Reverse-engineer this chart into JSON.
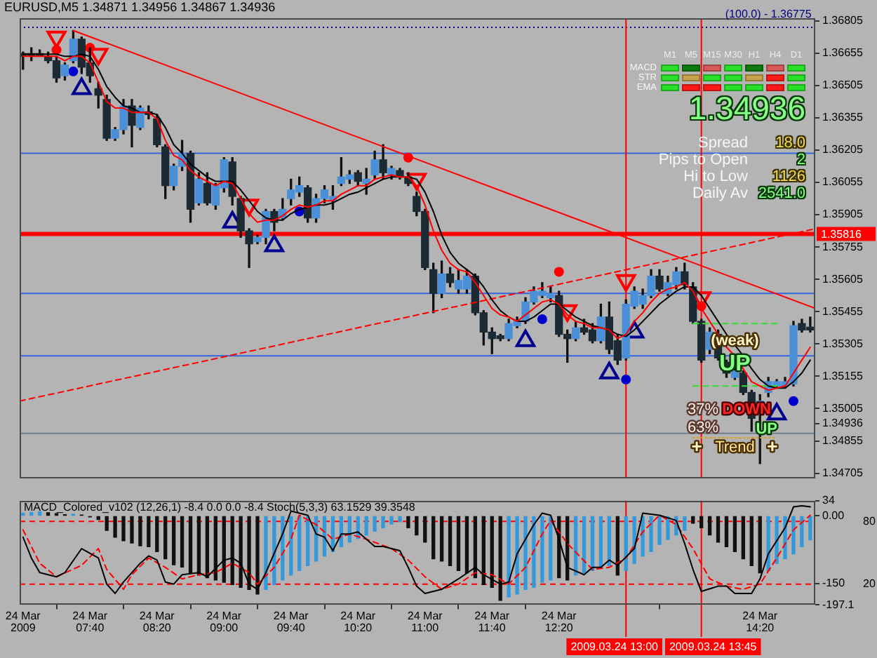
{
  "chart_data": [
    {
      "type": "candlestick",
      "title": "EURUSD,M5 1.34871 1.34956 1.34867 1.34936",
      "x": [
        "2009-03-24T07:00",
        "2009-03-24T07:05",
        "2009-03-24T07:10",
        "2009-03-24T07:15",
        "2009-03-24T07:20",
        "2009-03-24T07:25",
        "2009-03-24T07:30",
        "2009-03-24T07:35",
        "2009-03-24T07:40",
        "2009-03-24T07:45",
        "2009-03-24T07:50",
        "2009-03-24T07:55",
        "2009-03-24T08:00",
        "2009-03-24T08:05",
        "2009-03-24T08:10",
        "2009-03-24T08:15",
        "2009-03-24T08:20",
        "2009-03-24T08:25",
        "2009-03-24T08:30",
        "2009-03-24T08:35",
        "2009-03-24T08:40",
        "2009-03-24T08:45",
        "2009-03-24T08:50",
        "2009-03-24T08:55",
        "2009-03-24T09:00",
        "2009-03-24T09:05",
        "2009-03-24T09:10",
        "2009-03-24T09:15",
        "2009-03-24T09:20",
        "2009-03-24T09:25",
        "2009-03-24T09:30",
        "2009-03-24T09:35",
        "2009-03-24T09:40",
        "2009-03-24T09:45",
        "2009-03-24T09:50",
        "2009-03-24T09:55",
        "2009-03-24T10:00",
        "2009-03-24T10:05",
        "2009-03-24T10:10",
        "2009-03-24T10:15",
        "2009-03-24T10:20",
        "2009-03-24T10:25",
        "2009-03-24T10:30",
        "2009-03-24T10:35",
        "2009-03-24T10:40",
        "2009-03-24T10:45",
        "2009-03-24T10:50",
        "2009-03-24T10:55",
        "2009-03-24T11:00",
        "2009-03-24T11:05",
        "2009-03-24T11:10",
        "2009-03-24T11:15",
        "2009-03-24T11:20",
        "2009-03-24T11:25",
        "2009-03-24T11:30",
        "2009-03-24T11:35",
        "2009-03-24T11:40",
        "2009-03-24T11:45",
        "2009-03-24T11:50",
        "2009-03-24T11:55",
        "2009-03-24T12:00",
        "2009-03-24T12:05",
        "2009-03-24T12:10",
        "2009-03-24T12:15",
        "2009-03-24T12:20",
        "2009-03-24T12:25",
        "2009-03-24T12:30",
        "2009-03-24T12:35",
        "2009-03-24T12:40",
        "2009-03-24T12:45",
        "2009-03-24T12:50",
        "2009-03-24T12:55",
        "2009-03-24T13:00",
        "2009-03-24T13:05",
        "2009-03-24T13:10",
        "2009-03-24T13:15",
        "2009-03-24T13:20",
        "2009-03-24T13:25",
        "2009-03-24T13:30",
        "2009-03-24T13:35",
        "2009-03-24T13:40",
        "2009-03-24T13:45",
        "2009-03-24T13:50",
        "2009-03-24T13:55",
        "2009-03-24T14:00",
        "2009-03-24T14:05",
        "2009-03-24T14:10",
        "2009-03-24T14:15",
        "2009-03-24T14:20",
        "2009-03-24T14:25",
        "2009-03-24T14:30",
        "2009-03-24T14:35",
        "2009-03-24T14:40",
        "2009-03-24T14:45",
        "2009-03-24T14:50"
      ],
      "ohlc": [
        [
          1.3665,
          1.3666,
          1.3658,
          1.3664
        ],
        [
          1.3665,
          1.3668,
          1.3662,
          1.3664
        ],
        [
          1.3665,
          1.3667,
          1.3664,
          1.3664
        ],
        [
          1.3664,
          1.3666,
          1.3661,
          1.3662
        ],
        [
          1.3662,
          1.3664,
          1.3652,
          1.3654
        ],
        [
          1.3655,
          1.3661,
          1.3653,
          1.366
        ],
        [
          1.3662,
          1.3676,
          1.3661,
          1.3672
        ],
        [
          1.3672,
          1.3673,
          1.3656,
          1.3659
        ],
        [
          1.3661,
          1.3668,
          1.3652,
          1.3655
        ],
        [
          1.3649,
          1.3652,
          1.364,
          1.3646
        ],
        [
          1.3644,
          1.3646,
          1.3625,
          1.3626
        ],
        [
          1.3626,
          1.3631,
          1.3625,
          1.363
        ],
        [
          1.363,
          1.3644,
          1.3628,
          1.3641
        ],
        [
          1.3641,
          1.3644,
          1.3622,
          1.3632
        ],
        [
          1.3631,
          1.3641,
          1.363,
          1.364
        ],
        [
          1.3638,
          1.3641,
          1.3635,
          1.3637
        ],
        [
          1.3635,
          1.3637,
          1.3622,
          1.3623
        ],
        [
          1.3622,
          1.3623,
          1.3598,
          1.3604
        ],
        [
          1.3604,
          1.3614,
          1.3602,
          1.3613
        ],
        [
          1.3613,
          1.3625,
          1.3611,
          1.3619
        ],
        [
          1.3619,
          1.362,
          1.3587,
          1.3593
        ],
        [
          1.3596,
          1.361,
          1.3595,
          1.3607
        ],
        [
          1.3605,
          1.361,
          1.3595,
          1.3596
        ],
        [
          1.3595,
          1.3605,
          1.3593,
          1.3604
        ],
        [
          1.3603,
          1.3617,
          1.3601,
          1.3616
        ],
        [
          1.3615,
          1.3617,
          1.3595,
          1.3599
        ],
        [
          1.3598,
          1.3599,
          1.358,
          1.3583
        ],
        [
          1.3583,
          1.3584,
          1.3566,
          1.3577
        ],
        [
          1.3578,
          1.3581,
          1.3577,
          1.358
        ],
        [
          1.358,
          1.3593,
          1.3577,
          1.3592
        ],
        [
          1.3592,
          1.3593,
          1.3583,
          1.3587
        ],
        [
          1.3589,
          1.3598,
          1.3588,
          1.3593
        ],
        [
          1.3598,
          1.3607,
          1.3595,
          1.3602
        ],
        [
          1.3601,
          1.3608,
          1.3599,
          1.3604
        ],
        [
          1.3603,
          1.3604,
          1.3587,
          1.3589
        ],
        [
          1.3589,
          1.36,
          1.3587,
          1.3598
        ],
        [
          1.3598,
          1.3604,
          1.3596,
          1.3602
        ],
        [
          1.3597,
          1.3604,
          1.3593,
          1.3599
        ],
        [
          1.3605,
          1.3617,
          1.3604,
          1.3608
        ],
        [
          1.3607,
          1.3611,
          1.3605,
          1.3609
        ],
        [
          1.361,
          1.3611,
          1.3604,
          1.3606
        ],
        [
          1.3605,
          1.3612,
          1.36,
          1.3607
        ],
        [
          1.3609,
          1.362,
          1.3607,
          1.3616
        ],
        [
          1.3616,
          1.3623,
          1.3607,
          1.361
        ],
        [
          1.3609,
          1.3613,
          1.3607,
          1.3612
        ],
        [
          1.3611,
          1.3612,
          1.3607,
          1.3608
        ],
        [
          1.3608,
          1.361,
          1.3604,
          1.3605
        ],
        [
          1.3599,
          1.3601,
          1.359,
          1.3592
        ],
        [
          1.3592,
          1.3593,
          1.3565,
          1.3566
        ],
        [
          1.3565,
          1.3568,
          1.3545,
          1.3554
        ],
        [
          1.3554,
          1.3569,
          1.3552,
          1.3563
        ],
        [
          1.3563,
          1.3566,
          1.3557,
          1.3559
        ],
        [
          1.3556,
          1.3565,
          1.3554,
          1.356
        ],
        [
          1.3556,
          1.3565,
          1.3554,
          1.3562
        ],
        [
          1.3562,
          1.3563,
          1.3544,
          1.3545
        ],
        [
          1.3545,
          1.3546,
          1.353,
          1.3536
        ],
        [
          1.3536,
          1.3538,
          1.3526,
          1.3533
        ],
        [
          1.3534,
          1.3535,
          1.3532,
          1.3533
        ],
        [
          1.3533,
          1.3542,
          1.3532,
          1.354
        ],
        [
          1.3539,
          1.3543,
          1.3538,
          1.3541
        ],
        [
          1.3541,
          1.3552,
          1.354,
          1.355
        ],
        [
          1.355,
          1.3557,
          1.3549,
          1.3555
        ],
        [
          1.3553,
          1.3559,
          1.3552,
          1.3555
        ],
        [
          1.3552,
          1.3557,
          1.355,
          1.3554
        ],
        [
          1.3553,
          1.3555,
          1.3534,
          1.3535
        ],
        [
          1.3535,
          1.3537,
          1.3522,
          1.3533
        ],
        [
          1.3533,
          1.3541,
          1.3532,
          1.3538
        ],
        [
          1.3538,
          1.3542,
          1.3535,
          1.3536
        ],
        [
          1.3537,
          1.354,
          1.3531,
          1.3532
        ],
        [
          1.3532,
          1.3549,
          1.3531,
          1.3543
        ],
        [
          1.3543,
          1.355,
          1.3526,
          1.3528
        ],
        [
          1.3532,
          1.3535,
          1.3521,
          1.3523
        ],
        [
          1.3524,
          1.3551,
          1.3523,
          1.3549
        ],
        [
          1.3548,
          1.3557,
          1.3547,
          1.3555
        ],
        [
          1.3549,
          1.3556,
          1.3547,
          1.3553
        ],
        [
          1.3553,
          1.3565,
          1.3552,
          1.3562
        ],
        [
          1.3562,
          1.3565,
          1.3555,
          1.3556
        ],
        [
          1.3554,
          1.3562,
          1.3553,
          1.3559
        ],
        [
          1.3558,
          1.3566,
          1.3556,
          1.3564
        ],
        [
          1.3564,
          1.3568,
          1.3556,
          1.3558
        ],
        [
          1.3557,
          1.3559,
          1.354,
          1.3541
        ],
        [
          1.3541,
          1.3542,
          1.3522,
          1.3523
        ],
        [
          1.3528,
          1.3538,
          1.3526,
          1.3536
        ],
        [
          1.3535,
          1.3537,
          1.3523,
          1.3524
        ],
        [
          1.3522,
          1.3523,
          1.3515,
          1.3517
        ],
        [
          1.3515,
          1.352,
          1.3514,
          1.3518
        ],
        [
          1.3517,
          1.3518,
          1.3507,
          1.3508
        ],
        [
          1.3508,
          1.3509,
          1.349,
          1.3496
        ],
        [
          1.3498,
          1.3507,
          1.3475,
          1.3504
        ],
        [
          1.3508,
          1.3515,
          1.3506,
          1.3513
        ],
        [
          1.3511,
          1.3514,
          1.351,
          1.3513
        ],
        [
          1.3511,
          1.3515,
          1.351,
          1.3513
        ],
        [
          1.3512,
          1.3541,
          1.3511,
          1.3539
        ],
        [
          1.354,
          1.3542,
          1.3536,
          1.3537
        ],
        [
          1.3538,
          1.3543,
          1.3536,
          1.3537
        ]
      ],
      "colors": [
        "#1c2a33",
        "#1c2a33",
        "#1c2a33",
        "#1c2a33",
        "#1c2a33",
        "#4a90d8",
        "#4a90d8",
        "#1c2a33",
        "#1c2a33",
        "#1c2a33",
        "#1c2a33",
        "#4a90d8",
        "#4a90d8",
        "#1c2a33",
        "#4a90d8",
        "#1c2a33",
        "#1c2a33",
        "#1c2a33",
        "#4a90d8",
        "#4a90d8",
        "#1c2a33",
        "#4a90d8",
        "#1c2a33",
        "#4a90d8",
        "#4a90d8",
        "#1c2a33",
        "#1c2a33",
        "#1c2a33",
        "#4a90d8",
        "#4a90d8",
        "#1c2a33",
        "#4a90d8",
        "#4a90d8",
        "#4a90d8",
        "#1c2a33",
        "#4a90d8",
        "#4a90d8",
        "#4a90d8",
        "#4a90d8",
        "#4a90d8",
        "#1c2a33",
        "#4a90d8",
        "#4a90d8",
        "#1c2a33",
        "#4a90d8",
        "#1c2a33",
        "#1c2a33",
        "#1c2a33",
        "#1c2a33",
        "#1c2a33",
        "#4a90d8",
        "#1c2a33",
        "#4a90d8",
        "#4a90d8",
        "#1c2a33",
        "#1c2a33",
        "#1c2a33",
        "#1c2a33",
        "#4a90d8",
        "#4a90d8",
        "#4a90d8",
        "#4a90d8",
        "#4a90d8",
        "#4a90d8",
        "#1c2a33",
        "#1c2a33",
        "#4a90d8",
        "#1c2a33",
        "#1c2a33",
        "#4a90d8",
        "#1c2a33",
        "#1c2a33",
        "#4a90d8",
        "#4a90d8",
        "#4a90d8",
        "#4a90d8",
        "#1c2a33",
        "#4a90d8",
        "#4a90d8",
        "#1c2a33",
        "#1c2a33",
        "#1c2a33",
        "#4a90d8",
        "#1c2a33",
        "#1c2a33",
        "#4a90d8",
        "#1c2a33",
        "#1c2a33",
        "#4a90d8",
        "#4a90d8",
        "#4a90d8",
        "#4a90d8",
        "#4a90d8",
        "#1c2a33",
        "#1c2a33"
      ],
      "series": [
        {
          "type": "line",
          "color": "#ff0000",
          "values": [
            1.3664,
            1.3664,
            1.3664,
            1.3664,
            1.3664,
            1.3662,
            1.3664,
            1.3664,
            1.3661,
            1.3652,
            1.3643,
            1.364,
            1.364,
            1.3638,
            1.3638,
            1.3638,
            1.3635,
            1.3625,
            1.3618,
            1.3616,
            1.3611,
            1.3608,
            1.3606,
            1.3604,
            1.3606,
            1.3605,
            1.3598,
            1.3591,
            1.3587,
            1.3588,
            1.3588,
            1.359,
            1.3593,
            1.3595,
            1.3594,
            1.3595,
            1.3597,
            1.3597,
            1.36,
            1.3602,
            1.3604,
            1.3604,
            1.3607,
            1.3608,
            1.3609,
            1.3608,
            1.3608,
            1.3604,
            1.3595,
            1.3583,
            1.3574,
            1.3568,
            1.3565,
            1.3564,
            1.3559,
            1.3553,
            1.3547,
            1.3544,
            1.3543,
            1.3541,
            1.3544,
            1.3547,
            1.355,
            1.3551,
            1.3549,
            1.3544,
            1.3541,
            1.354,
            1.3538,
            1.3538,
            1.3537,
            1.3533,
            1.3535,
            1.3541,
            1.3545,
            1.355,
            1.3554,
            1.3556,
            1.3557,
            1.3559,
            1.3555,
            1.3547,
            1.3541,
            1.3535,
            1.3529,
            1.3525,
            1.3519,
            1.3513,
            1.3511,
            1.3509,
            1.351,
            1.3511,
            1.3517,
            1.3523,
            1.3529
          ]
        },
        {
          "type": "line",
          "color": "#000000",
          "values": [
            1.3665,
            1.3665,
            1.3665,
            1.3665,
            1.3665,
            1.3664,
            1.3664,
            1.3665,
            1.3664,
            1.3658,
            1.365,
            1.3645,
            1.3641,
            1.364,
            1.3638,
            1.3638,
            1.3637,
            1.3631,
            1.3623,
            1.3619,
            1.3614,
            1.3611,
            1.3608,
            1.3606,
            1.3606,
            1.3606,
            1.3602,
            1.3597,
            1.3592,
            1.3589,
            1.3588,
            1.3588,
            1.3591,
            1.3593,
            1.3594,
            1.3595,
            1.3595,
            1.3596,
            1.3598,
            1.36,
            1.3601,
            1.3603,
            1.3605,
            1.3607,
            1.3608,
            1.3608,
            1.3608,
            1.3607,
            1.3601,
            1.3592,
            1.3581,
            1.3573,
            1.3568,
            1.3565,
            1.3562,
            1.3557,
            1.3551,
            1.3546,
            1.3543,
            1.3541,
            1.3541,
            1.3543,
            1.3546,
            1.3549,
            1.3549,
            1.3546,
            1.3543,
            1.3541,
            1.3539,
            1.3538,
            1.3537,
            1.3535,
            1.3534,
            1.3537,
            1.3541,
            1.3545,
            1.3549,
            1.3552,
            1.3555,
            1.3557,
            1.3557,
            1.3553,
            1.3547,
            1.3541,
            1.3535,
            1.353,
            1.3525,
            1.3519,
            1.3514,
            1.3511,
            1.351,
            1.351,
            1.3513,
            1.3517,
            1.3523
          ]
        },
        {
          "type": "line",
          "color": "#ff0000",
          "x": [
            "2009-03-24T07:30",
            "2009-03-24T14:53"
          ],
          "values": [
            1.3676,
            1.3547
          ]
        },
        {
          "type": "line",
          "color": "#ff0000",
          "line_style": "dashed",
          "x": [
            "2009-03-24T06:58",
            "2009-03-24T14:53"
          ],
          "values": [
            1.3504,
            1.3584
          ]
        },
        {
          "type": "line",
          "color": "#33dd33",
          "line_style": "dashed",
          "x": [
            "2009-03-24T13:40",
            "2009-03-24T14:30"
          ],
          "values": [
            1.354,
            1.354
          ]
        },
        {
          "type": "line",
          "color": "#33dd33",
          "line_style": "dashed",
          "x": [
            "2009-03-24T13:40",
            "2009-03-24T14:30"
          ],
          "values": [
            1.3511,
            1.3511
          ]
        },
        {
          "type": "line",
          "color": "#d8a020",
          "line_style": "dotted",
          "x": [
            "2009-03-24T13:40",
            "2009-03-24T14:30"
          ],
          "values": [
            1.3487,
            1.3487
          ]
        },
        {
          "type": "scatter",
          "color": "#ff0000",
          "marker": "triangle",
          "x": [
            "2009-03-24T07:20",
            "2009-03-24T07:45",
            "2009-03-24T09:15",
            "2009-03-24T10:55",
            "2009-03-24T12:25",
            "2009-03-24T13:00",
            "2009-03-24T13:45"
          ],
          "values": [
            1.3673,
            1.3665,
            1.3595,
            1.3607,
            1.3546,
            1.356,
            1.3552
          ]
        },
        {
          "type": "scatter",
          "color": "#000090",
          "marker": "triangle",
          "x": [
            "2009-03-24T07:35",
            "2009-03-24T09:05",
            "2009-03-24T09:30",
            "2009-03-24T12:00",
            "2009-03-24T12:50",
            "2009-03-24T13:05",
            "2009-03-24T14:30"
          ],
          "values": [
            1.3649,
            1.3587,
            1.3576,
            1.3532,
            1.3517,
            1.3536,
            1.3498
          ]
        },
        {
          "type": "scatter",
          "color": "#ff0000",
          "marker": "circle",
          "x": [
            "2009-03-24T07:20",
            "2009-03-24T07:40",
            "2009-03-24T10:50",
            "2009-03-24T12:20",
            "2009-03-24T13:45"
          ],
          "values": [
            1.3667,
            1.3668,
            1.3617,
            1.3564,
            1.3548
          ]
        },
        {
          "type": "scatter",
          "color": "#0000cc",
          "marker": "circle",
          "x": [
            "2009-03-24T07:30",
            "2009-03-24T09:45",
            "2009-03-24T12:10",
            "2009-03-24T13:00",
            "2009-03-24T14:40"
          ],
          "values": [
            1.3657,
            1.3592,
            1.3542,
            1.3514,
            1.3504
          ]
        }
      ],
      "xlim": [
        "2009-03-24T06:58",
        "2009-03-24T14:53"
      ],
      "ylim": [
        1.34681,
        1.36817
      ],
      "yticks": [
        1.36805,
        1.36655,
        1.36505,
        1.36355,
        1.36205,
        1.36055,
        1.35905,
        1.35755,
        1.35605,
        1.35455,
        1.35305,
        1.35155,
        1.35005,
        1.34936,
        1.34855,
        1.34705
      ],
      "tick_labels": "y",
      "ref_lines": [
        {
          "axis": "y",
          "value": 1.36775,
          "color": "#000080",
          "line_style": "dotted"
        },
        {
          "axis": "y",
          "value": 1.3619,
          "color": "#3366dd"
        },
        {
          "axis": "y",
          "value": 1.3554,
          "color": "#3366dd"
        },
        {
          "axis": "y",
          "value": 1.3525,
          "color": "#3366dd"
        },
        {
          "axis": "y",
          "value": 1.3489,
          "color": "#6d8090"
        },
        {
          "axis": "y",
          "value": 1.35816,
          "label": "1.35816",
          "color": "#ff0000"
        },
        {
          "axis": "x",
          "value": "2009-03-24T13:00",
          "color": "#ff0000"
        },
        {
          "axis": "x",
          "value": "2009-03-24T13:45",
          "color": "#ff0000"
        }
      ],
      "annotations": [
        {
          "text": "(100.0) - 1.36775",
          "x": "2009-03-24T14:25",
          "y": 1.36775
        },
        {
          "text": "(weak)",
          "x": "2009-03-24T14:05",
          "y": 1.3532
        },
        {
          "text": "UP",
          "x": "2009-03-24T14:05",
          "y": 1.3521
        },
        "37%",
        {
          "text": "DOWN",
          "x": "2009-03-24T14:12",
          "y": 1.35
        },
        "63%",
        {
          "text": "UP",
          "x": "2009-03-24T14:24",
          "y": 1.3491
        },
        "Trend",
        "+",
        "+"
      ]
    },
    {
      "type": "bar",
      "title": "MACD_Colored_v102 (12,26,1) -8.4 0.0 0.0 -8.4 Stoch(5,3,3) 63.1529 39.3548",
      "x": [
        "2009-03-24T07:00",
        "2009-03-24T07:05",
        "2009-03-24T07:10",
        "2009-03-24T07:15",
        "2009-03-24T07:20",
        "2009-03-24T07:25",
        "2009-03-24T07:30",
        "2009-03-24T07:35",
        "2009-03-24T07:40",
        "2009-03-24T07:45",
        "2009-03-24T07:50",
        "2009-03-24T07:55",
        "2009-03-24T08:00",
        "2009-03-24T08:05",
        "2009-03-24T08:10",
        "2009-03-24T08:15",
        "2009-03-24T08:20",
        "2009-03-24T08:25",
        "2009-03-24T08:30",
        "2009-03-24T08:35",
        "2009-03-24T08:40",
        "2009-03-24T08:45",
        "2009-03-24T08:50",
        "2009-03-24T08:55",
        "2009-03-24T09:00",
        "2009-03-24T09:05",
        "2009-03-24T09:10",
        "2009-03-24T09:15",
        "2009-03-24T09:20",
        "2009-03-24T09:25",
        "2009-03-24T09:30",
        "2009-03-24T09:35",
        "2009-03-24T09:40",
        "2009-03-24T09:45",
        "2009-03-24T09:50",
        "2009-03-24T09:55",
        "2009-03-24T10:00",
        "2009-03-24T10:05",
        "2009-03-24T10:10",
        "2009-03-24T10:15",
        "2009-03-24T10:20",
        "2009-03-24T10:25",
        "2009-03-24T10:30",
        "2009-03-24T10:35",
        "2009-03-24T10:40",
        "2009-03-24T10:45",
        "2009-03-24T10:50",
        "2009-03-24T10:55",
        "2009-03-24T11:00",
        "2009-03-24T11:05",
        "2009-03-24T11:10",
        "2009-03-24T11:15",
        "2009-03-24T11:20",
        "2009-03-24T11:25",
        "2009-03-24T11:30",
        "2009-03-24T11:35",
        "2009-03-24T11:40",
        "2009-03-24T11:45",
        "2009-03-24T11:50",
        "2009-03-24T11:55",
        "2009-03-24T12:00",
        "2009-03-24T12:05",
        "2009-03-24T12:10",
        "2009-03-24T12:15",
        "2009-03-24T12:20",
        "2009-03-24T12:25",
        "2009-03-24T12:30",
        "2009-03-24T12:35",
        "2009-03-24T12:40",
        "2009-03-24T12:45",
        "2009-03-24T12:50",
        "2009-03-24T12:55",
        "2009-03-24T13:00",
        "2009-03-24T13:05",
        "2009-03-24T13:10",
        "2009-03-24T13:15",
        "2009-03-24T13:20",
        "2009-03-24T13:25",
        "2009-03-24T13:30",
        "2009-03-24T13:35",
        "2009-03-24T13:40",
        "2009-03-24T13:45",
        "2009-03-24T13:50",
        "2009-03-24T13:55",
        "2009-03-24T14:00",
        "2009-03-24T14:05",
        "2009-03-24T14:10",
        "2009-03-24T14:15",
        "2009-03-24T14:20",
        "2009-03-24T14:25",
        "2009-03-24T14:30",
        "2009-03-24T14:35",
        "2009-03-24T14:40",
        "2009-03-24T14:45",
        "2009-03-24T14:50"
      ],
      "series": [
        {
          "type": "bar",
          "colors": [
            "#3399dd",
            "#3399dd",
            "#3399dd",
            "#111111",
            "#111111",
            "#111111",
            "#3399dd",
            "#111111",
            "#111111",
            "#111111",
            "#111111",
            "#111111",
            "#111111",
            "#111111",
            "#111111",
            "#111111",
            "#111111",
            "#111111",
            "#111111",
            "#111111",
            "#111111",
            "#111111",
            "#111111",
            "#111111",
            "#111111",
            "#111111",
            "#111111",
            "#111111",
            "#111111",
            "#3399dd",
            "#3399dd",
            "#3399dd",
            "#3399dd",
            "#3399dd",
            "#3399dd",
            "#3399dd",
            "#3399dd",
            "#3399dd",
            "#3399dd",
            "#3399dd",
            "#3399dd",
            "#3399dd",
            "#3399dd",
            "#3399dd",
            "#3399dd",
            "#3399dd",
            "#111111",
            "#111111",
            "#111111",
            "#111111",
            "#111111",
            "#111111",
            "#111111",
            "#111111",
            "#111111",
            "#111111",
            "#111111",
            "#111111",
            "#3399dd",
            "#3399dd",
            "#3399dd",
            "#3399dd",
            "#3399dd",
            "#3399dd",
            "#111111",
            "#111111",
            "#3399dd",
            "#3399dd",
            "#3399dd",
            "#3399dd",
            "#3399dd",
            "#111111",
            "#3399dd",
            "#3399dd",
            "#3399dd",
            "#3399dd",
            "#3399dd",
            "#3399dd",
            "#3399dd",
            "#3399dd",
            "#111111",
            "#111111",
            "#111111",
            "#111111",
            "#111111",
            "#111111",
            "#111111",
            "#111111",
            "#111111",
            "#3399dd",
            "#3399dd",
            "#3399dd",
            "#3399dd",
            "#3399dd",
            "#3399dd"
          ],
          "values": [
            6,
            8,
            9,
            7,
            5,
            3,
            4,
            2,
            -2,
            -8,
            -32,
            -47,
            -55,
            -60,
            -66,
            -68,
            -79,
            -95,
            -108,
            -113,
            -126,
            -131,
            -137,
            -142,
            -147,
            -152,
            -158,
            -163,
            -173,
            -163,
            -152,
            -142,
            -131,
            -121,
            -110,
            -100,
            -89,
            -79,
            -68,
            -58,
            -50,
            -42,
            -34,
            -26,
            -18,
            -13,
            -26,
            -42,
            -58,
            -95,
            -100,
            -110,
            -121,
            -126,
            -137,
            -152,
            -158,
            -187,
            -179,
            -173,
            -163,
            -158,
            -147,
            -142,
            -137,
            -142,
            -131,
            -126,
            -121,
            -116,
            -110,
            -131,
            -121,
            -105,
            -89,
            -79,
            -63,
            -52,
            -42,
            -32,
            -16,
            -26,
            -42,
            -58,
            -68,
            -79,
            -95,
            -110,
            -126,
            -121,
            -105,
            -95,
            -84,
            -68,
            -53
          ]
        },
        {
          "type": "line",
          "axis": "y2",
          "color": "#000000",
          "x": [
            "2009-03-24T07:00",
            "2009-03-24T07:05",
            "2009-03-24T07:10",
            "2009-03-24T07:20",
            "2009-03-24T07:25",
            "2009-03-24T07:35",
            "2009-03-24T07:45",
            "2009-03-24T07:50",
            "2009-03-24T07:55",
            "2009-03-24T08:00",
            "2009-03-24T08:10",
            "2009-03-24T08:15",
            "2009-03-24T08:20",
            "2009-03-24T08:25",
            "2009-03-24T08:30",
            "2009-03-24T08:35",
            "2009-03-24T08:45",
            "2009-03-24T08:50",
            "2009-03-24T09:00",
            "2009-03-24T09:05",
            "2009-03-24T09:10",
            "2009-03-24T09:15",
            "2009-03-24T09:20",
            "2009-03-24T09:25",
            "2009-03-24T09:35",
            "2009-03-24T09:40",
            "2009-03-24T09:50",
            "2009-03-24T09:55",
            "2009-03-24T10:00",
            "2009-03-24T10:05",
            "2009-03-24T10:10",
            "2009-03-24T10:15",
            "2009-03-24T10:20",
            "2009-03-24T10:30",
            "2009-03-24T10:35",
            "2009-03-24T10:45",
            "2009-03-24T10:50",
            "2009-03-24T10:55",
            "2009-03-24T11:00",
            "2009-03-24T11:10",
            "2009-03-24T11:20",
            "2009-03-24T11:30",
            "2009-03-24T11:35",
            "2009-03-24T11:45",
            "2009-03-24T11:50",
            "2009-03-24T11:55",
            "2009-03-24T12:05",
            "2009-03-24T12:10",
            "2009-03-24T12:15",
            "2009-03-24T12:20",
            "2009-03-24T12:25",
            "2009-03-24T12:35",
            "2009-03-24T12:40",
            "2009-03-24T12:45",
            "2009-03-24T12:50",
            "2009-03-24T12:55",
            "2009-03-24T13:05",
            "2009-03-24T13:10",
            "2009-03-24T13:20",
            "2009-03-24T13:30",
            "2009-03-24T13:35",
            "2009-03-24T13:40",
            "2009-03-24T13:45",
            "2009-03-24T13:55",
            "2009-03-24T14:00",
            "2009-03-24T14:05",
            "2009-03-24T14:15",
            "2009-03-24T14:20",
            "2009-03-24T14:25",
            "2009-03-24T14:35",
            "2009-03-24T14:40",
            "2009-03-24T14:45",
            "2009-03-24T14:50"
          ],
          "values": [
            65,
            45,
            31,
            27,
            31,
            54,
            45,
            20,
            11,
            22,
            40,
            47,
            43,
            22,
            20,
            29,
            31,
            27,
            43,
            45,
            40,
            20,
            15,
            31,
            68,
            90,
            86,
            68,
            65,
            52,
            68,
            68,
            70,
            56,
            56,
            52,
            36,
            18,
            11,
            15,
            25,
            36,
            29,
            20,
            22,
            49,
            77,
            88,
            86,
            63,
            36,
            29,
            36,
            36,
            43,
            38,
            54,
            88,
            86,
            81,
            59,
            34,
            13,
            18,
            18,
            11,
            11,
            25,
            49,
            74,
            94,
            95,
            94
          ]
        },
        {
          "type": "line",
          "axis": "y2",
          "color": "#ff0000",
          "line_style": "dashed",
          "x": [
            "2009-03-24T07:00",
            "2009-03-24T07:10",
            "2009-03-24T07:20",
            "2009-03-24T07:35",
            "2009-03-24T07:45",
            "2009-03-24T07:50",
            "2009-03-24T08:00",
            "2009-03-24T08:05",
            "2009-03-24T08:15",
            "2009-03-24T08:25",
            "2009-03-24T08:35",
            "2009-03-24T08:45",
            "2009-03-24T08:55",
            "2009-03-24T09:05",
            "2009-03-24T09:15",
            "2009-03-24T09:20",
            "2009-03-24T09:30",
            "2009-03-24T09:40",
            "2009-03-24T09:45",
            "2009-03-24T09:55",
            "2009-03-24T10:05",
            "2009-03-24T10:15",
            "2009-03-24T10:25",
            "2009-03-24T10:40",
            "2009-03-24T10:50",
            "2009-03-24T11:00",
            "2009-03-24T11:10",
            "2009-03-24T11:20",
            "2009-03-24T11:30",
            "2009-03-24T11:40",
            "2009-03-24T11:50",
            "2009-03-24T12:00",
            "2009-03-24T12:10",
            "2009-03-24T12:15",
            "2009-03-24T12:25",
            "2009-03-24T12:40",
            "2009-03-24T12:50",
            "2009-03-24T13:00",
            "2009-03-24T13:10",
            "2009-03-24T13:20",
            "2009-03-24T13:30",
            "2009-03-24T13:40",
            "2009-03-24T13:50",
            "2009-03-24T14:00",
            "2009-03-24T14:10",
            "2009-03-24T14:20",
            "2009-03-24T14:30",
            "2009-03-24T14:40",
            "2009-03-24T14:50"
          ],
          "values": [
            72,
            40,
            27,
            38,
            54,
            34,
            15,
            29,
            45,
            36,
            25,
            29,
            31,
            40,
            31,
            20,
            36,
            63,
            86,
            77,
            63,
            68,
            63,
            54,
            43,
            27,
            15,
            20,
            31,
            29,
            20,
            36,
            68,
            81,
            59,
            34,
            36,
            45,
            70,
            86,
            77,
            54,
            25,
            18,
            15,
            20,
            45,
            72,
            86
          ]
        }
      ],
      "xlim": [
        "2009-03-24T06:58",
        "2009-03-24T14:53"
      ],
      "xticks": [
        {
          "value": "2009-03-24T07:00",
          "label": "24 Mar 2009"
        },
        {
          "value": "2009-03-24T07:40",
          "label": "24 Mar 07:40"
        },
        {
          "value": "2009-03-24T08:20",
          "label": "24 Mar 08:20"
        },
        {
          "value": "2009-03-24T09:00",
          "label": "24 Mar 09:00"
        },
        {
          "value": "2009-03-24T09:40",
          "label": "24 Mar 09:40"
        },
        {
          "value": "2009-03-24T10:20",
          "label": "24 Mar 10:20"
        },
        {
          "value": "2009-03-24T11:00",
          "label": "24 Mar 11:00"
        },
        {
          "value": "2009-03-24T11:40",
          "label": "24 Mar 11:40"
        },
        {
          "value": "2009-03-24T12:20",
          "label": "24 Mar 12:20"
        },
        {
          "value": "2009-03-24T14:20",
          "label": "24 Mar 14:20"
        }
      ],
      "ylim": [
        -197.1,
        34
      ],
      "yticks": [
        -197.1,
        -150,
        {
          "value": 0,
          "label": "0.00"
        },
        34
      ],
      "y2lim": [
        0,
        100
      ],
      "y2ticks": [
        20,
        80
      ],
      "ref_lines": [
        {
          "axis": "y2",
          "value": 80,
          "color": "#ff0000",
          "line_style": "dashed"
        },
        {
          "axis": "y2",
          "value": 20,
          "color": "#ff0000",
          "line_style": "dashed"
        },
        {
          "axis": "x",
          "value": "2009-03-24T13:00",
          "label": "2009.03.24 13:00",
          "color": "#ff0000"
        },
        {
          "axis": "x",
          "value": "2009-03-24T13:45",
          "label": "2009.03.24 13:45",
          "color": "#ff0000"
        }
      ]
    },
    {
      "type": "other",
      "annotations": [
        "M1",
        "M5",
        "M15",
        "M30",
        "H1",
        "H4",
        "D1",
        "MACD",
        "STR",
        "EMA",
        "1.34936",
        "Spread",
        "18.0",
        "Pips to Open",
        "2",
        "Hi to Low",
        "1126",
        "Daily Av",
        "2541.0"
      ]
    }
  ]
}
